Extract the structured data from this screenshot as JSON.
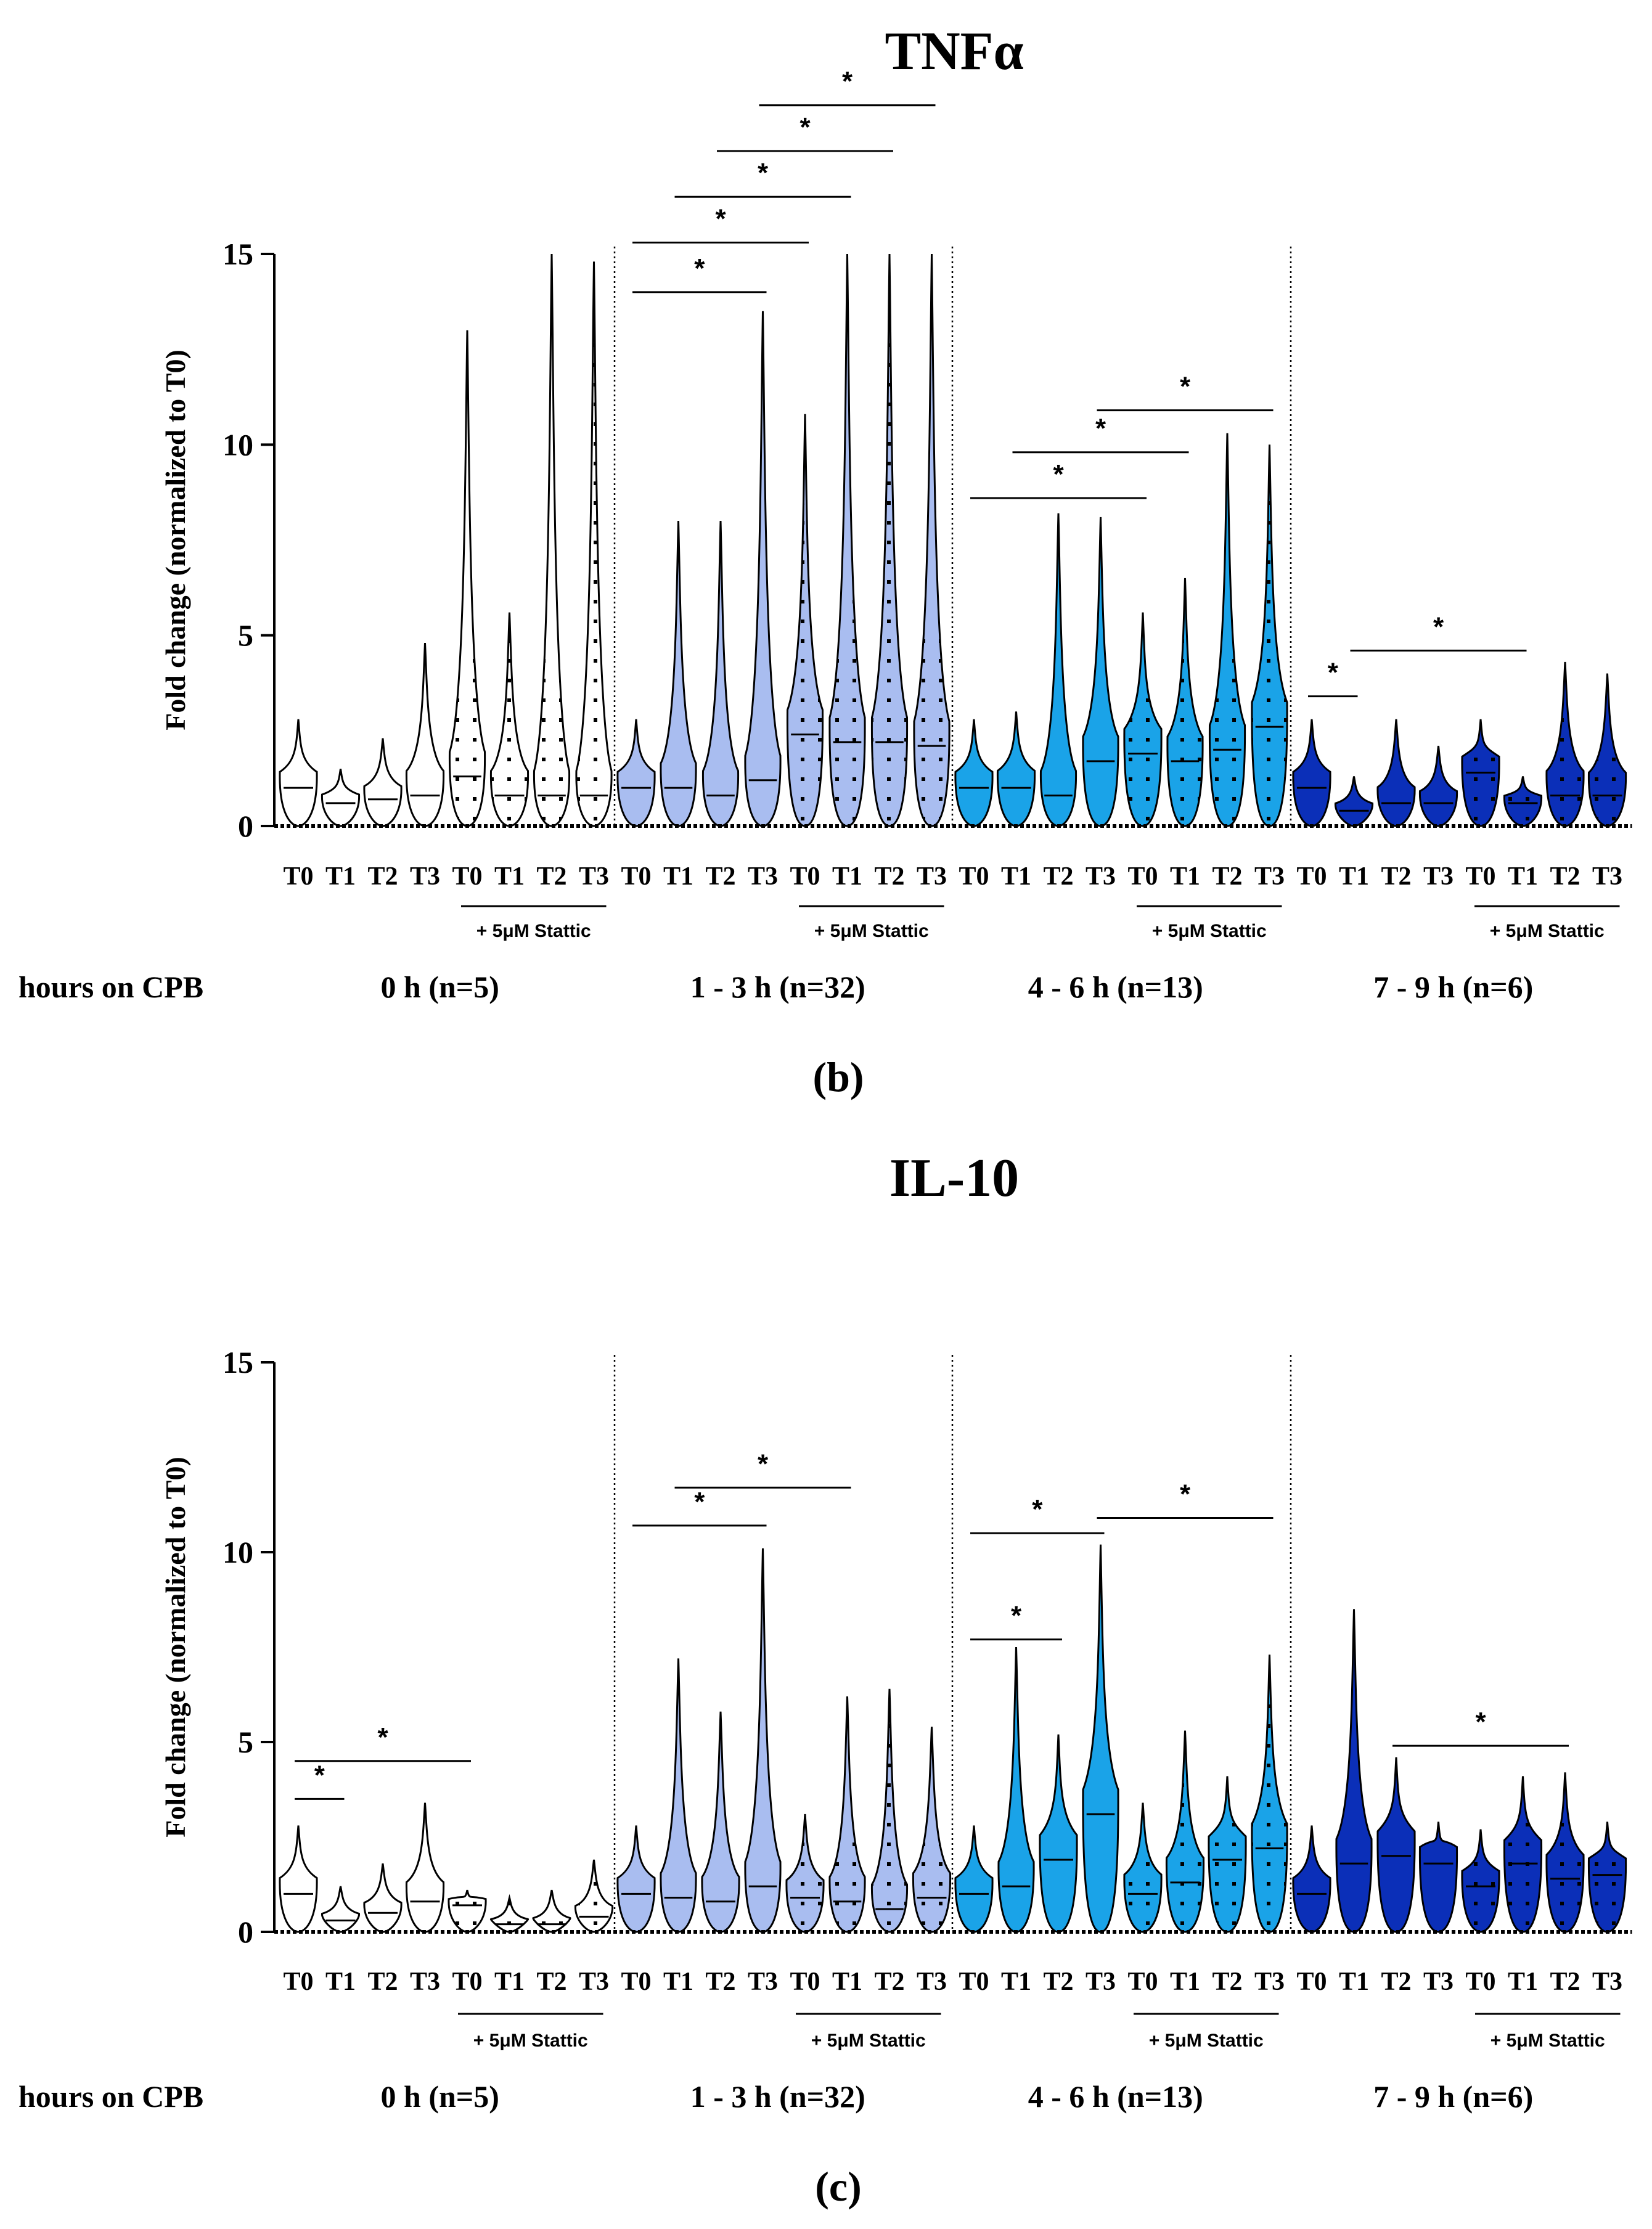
{
  "colors": {
    "group_0h": "#ffffff",
    "group_1_3h": "#a9bdf0",
    "group_4_6h": "#1aa3e8",
    "group_7_9h": "#0b2fb8",
    "stroke": "#000000"
  },
  "chart_data": [
    {
      "type": "violin",
      "title": "TNFα",
      "ylabel": "Fold change (normalized to T0)",
      "ylim": [
        0,
        15
      ],
      "yticks": [
        "0",
        "5",
        "10",
        "15"
      ],
      "row_label": "hours on CPB",
      "panel_label": "(b)",
      "stattic_label": "+ 5μM Stattic",
      "groups": [
        {
          "name": "0 h (n=5)",
          "color_key": "group_0h",
          "violins": [
            {
              "label": "T0",
              "median": 1.0,
              "max": 2.8,
              "dotted": false
            },
            {
              "label": "T1",
              "median": 0.6,
              "max": 1.5,
              "dotted": false
            },
            {
              "label": "T2",
              "median": 0.7,
              "max": 2.3,
              "dotted": false
            },
            {
              "label": "T3",
              "median": 0.8,
              "max": 4.8,
              "dotted": false
            },
            {
              "label": "T0",
              "median": 1.3,
              "max": 13.0,
              "dotted": true
            },
            {
              "label": "T1",
              "median": 0.8,
              "max": 5.6,
              "dotted": true
            },
            {
              "label": "T2",
              "median": 0.8,
              "max": 15.0,
              "dotted": true
            },
            {
              "label": "T3",
              "median": 0.8,
              "max": 14.8,
              "dotted": true
            }
          ]
        },
        {
          "name": "1 - 3 h (n=32)",
          "color_key": "group_1_3h",
          "violins": [
            {
              "label": "T0",
              "median": 1.0,
              "max": 2.8,
              "dotted": false
            },
            {
              "label": "T1",
              "median": 1.0,
              "max": 8.0,
              "dotted": false
            },
            {
              "label": "T2",
              "median": 0.8,
              "max": 8.0,
              "dotted": false
            },
            {
              "label": "T3",
              "median": 1.2,
              "max": 13.5,
              "dotted": false
            },
            {
              "label": "T0",
              "median": 2.4,
              "max": 10.8,
              "dotted": true
            },
            {
              "label": "T1",
              "median": 2.2,
              "max": 15.0,
              "dotted": true
            },
            {
              "label": "T2",
              "median": 2.2,
              "max": 15.0,
              "dotted": true
            },
            {
              "label": "T3",
              "median": 2.1,
              "max": 15.0,
              "dotted": true
            }
          ]
        },
        {
          "name": "4 - 6 h (n=13)",
          "color_key": "group_4_6h",
          "violins": [
            {
              "label": "T0",
              "median": 1.0,
              "max": 2.8,
              "dotted": false
            },
            {
              "label": "T1",
              "median": 1.0,
              "max": 3.0,
              "dotted": false
            },
            {
              "label": "T2",
              "median": 0.8,
              "max": 8.2,
              "dotted": false
            },
            {
              "label": "T3",
              "median": 1.7,
              "max": 8.1,
              "dotted": false
            },
            {
              "label": "T0",
              "median": 1.9,
              "max": 5.6,
              "dotted": true
            },
            {
              "label": "T1",
              "median": 1.7,
              "max": 6.5,
              "dotted": true
            },
            {
              "label": "T2",
              "median": 2.0,
              "max": 10.3,
              "dotted": true
            },
            {
              "label": "T3",
              "median": 2.6,
              "max": 10.0,
              "dotted": true
            }
          ]
        },
        {
          "name": "7 - 9 h (n=6)",
          "color_key": "group_7_9h",
          "violins": [
            {
              "label": "T0",
              "median": 1.0,
              "max": 2.8,
              "dotted": false
            },
            {
              "label": "T1",
              "median": 0.4,
              "max": 1.3,
              "dotted": false
            },
            {
              "label": "T2",
              "median": 0.6,
              "max": 2.8,
              "dotted": false
            },
            {
              "label": "T3",
              "median": 0.6,
              "max": 2.1,
              "dotted": false
            },
            {
              "label": "T0",
              "median": 1.4,
              "max": 2.8,
              "dotted": true
            },
            {
              "label": "T1",
              "median": 0.6,
              "max": 1.3,
              "dotted": true
            },
            {
              "label": "T2",
              "median": 0.8,
              "max": 4.3,
              "dotted": true
            },
            {
              "label": "T3",
              "median": 0.8,
              "max": 4.0,
              "dotted": true
            }
          ]
        }
      ],
      "significance": [
        {
          "from": 8,
          "to": 11,
          "y": 14.0,
          "label": "*"
        },
        {
          "from": 8,
          "to": 12,
          "y": 15.3,
          "label": "*"
        },
        {
          "from": 9,
          "to": 13,
          "y": 16.5,
          "label": "*"
        },
        {
          "from": 10,
          "to": 14,
          "y": 17.7,
          "label": "*"
        },
        {
          "from": 11,
          "to": 15,
          "y": 18.9,
          "label": "*"
        },
        {
          "from": 16,
          "to": 20,
          "y": 8.6,
          "label": "*"
        },
        {
          "from": 17,
          "to": 21,
          "y": 9.8,
          "label": "*"
        },
        {
          "from": 19,
          "to": 23,
          "y": 10.9,
          "label": "*"
        },
        {
          "from": 24,
          "to": 25,
          "y": 3.4,
          "label": "*"
        },
        {
          "from": 25,
          "to": 29,
          "y": 4.6,
          "label": "*"
        }
      ]
    },
    {
      "type": "violin",
      "title": "IL-10",
      "ylabel": "Fold change (normalized to T0)",
      "ylim": [
        0,
        15
      ],
      "yticks": [
        "0",
        "5",
        "10",
        "15"
      ],
      "row_label": "hours on CPB",
      "panel_label": "(c)",
      "stattic_label": "+ 5μM Stattic",
      "groups": [
        {
          "name": "0 h (n=5)",
          "color_key": "group_0h",
          "violins": [
            {
              "label": "T0",
              "median": 1.0,
              "max": 2.8,
              "dotted": false
            },
            {
              "label": "T1",
              "median": 0.3,
              "max": 1.2,
              "dotted": false
            },
            {
              "label": "T2",
              "median": 0.5,
              "max": 1.8,
              "dotted": false
            },
            {
              "label": "T3",
              "median": 0.8,
              "max": 3.4,
              "dotted": false
            },
            {
              "label": "T0",
              "median": 0.7,
              "max": 1.1,
              "dotted": true
            },
            {
              "label": "T1",
              "median": 0.2,
              "max": 0.9,
              "dotted": true
            },
            {
              "label": "T2",
              "median": 0.2,
              "max": 1.1,
              "dotted": true
            },
            {
              "label": "T3",
              "median": 0.4,
              "max": 1.9,
              "dotted": true
            }
          ]
        },
        {
          "name": "1 - 3 h (n=32)",
          "color_key": "group_1_3h",
          "violins": [
            {
              "label": "T0",
              "median": 1.0,
              "max": 2.8,
              "dotted": false
            },
            {
              "label": "T1",
              "median": 0.9,
              "max": 7.2,
              "dotted": false
            },
            {
              "label": "T2",
              "median": 0.8,
              "max": 5.8,
              "dotted": false
            },
            {
              "label": "T3",
              "median": 1.2,
              "max": 10.1,
              "dotted": false
            },
            {
              "label": "T0",
              "median": 0.9,
              "max": 3.1,
              "dotted": true
            },
            {
              "label": "T1",
              "median": 0.8,
              "max": 6.2,
              "dotted": true
            },
            {
              "label": "T2",
              "median": 0.6,
              "max": 6.4,
              "dotted": true
            },
            {
              "label": "T3",
              "median": 0.9,
              "max": 5.4,
              "dotted": true
            }
          ]
        },
        {
          "name": "4 - 6 h (n=13)",
          "color_key": "group_4_6h",
          "violins": [
            {
              "label": "T0",
              "median": 1.0,
              "max": 2.8,
              "dotted": false
            },
            {
              "label": "T1",
              "median": 1.2,
              "max": 7.5,
              "dotted": false
            },
            {
              "label": "T2",
              "median": 1.9,
              "max": 5.2,
              "dotted": false
            },
            {
              "label": "T3",
              "median": 3.1,
              "max": 10.2,
              "dotted": false
            },
            {
              "label": "T0",
              "median": 1.0,
              "max": 3.4,
              "dotted": true
            },
            {
              "label": "T1",
              "median": 1.3,
              "max": 5.3,
              "dotted": true
            },
            {
              "label": "T2",
              "median": 1.9,
              "max": 4.1,
              "dotted": true
            },
            {
              "label": "T3",
              "median": 2.2,
              "max": 7.3,
              "dotted": true
            }
          ]
        },
        {
          "name": "7 - 9 h (n=6)",
          "color_key": "group_7_9h",
          "violins": [
            {
              "label": "T0",
              "median": 1.0,
              "max": 2.8,
              "dotted": false
            },
            {
              "label": "T1",
              "median": 1.8,
              "max": 8.5,
              "dotted": false
            },
            {
              "label": "T2",
              "median": 2.0,
              "max": 4.6,
              "dotted": false
            },
            {
              "label": "T3",
              "median": 1.8,
              "max": 2.9,
              "dotted": false
            },
            {
              "label": "T0",
              "median": 1.2,
              "max": 2.7,
              "dotted": true
            },
            {
              "label": "T1",
              "median": 1.8,
              "max": 4.1,
              "dotted": true
            },
            {
              "label": "T2",
              "median": 1.4,
              "max": 4.2,
              "dotted": true
            },
            {
              "label": "T3",
              "median": 1.5,
              "max": 2.9,
              "dotted": true
            }
          ]
        }
      ],
      "significance": [
        {
          "from": 0,
          "to": 1,
          "y": 3.5,
          "label": "*"
        },
        {
          "from": 0,
          "to": 4,
          "y": 4.5,
          "label": "*"
        },
        {
          "from": 8,
          "to": 11,
          "y": 10.7,
          "label": "*"
        },
        {
          "from": 9,
          "to": 13,
          "y": 11.7,
          "label": "*"
        },
        {
          "from": 16,
          "to": 18,
          "y": 7.7,
          "label": "*"
        },
        {
          "from": 16,
          "to": 19,
          "y": 10.5,
          "label": "*"
        },
        {
          "from": 19,
          "to": 23,
          "y": 10.9,
          "label": "*"
        },
        {
          "from": 26,
          "to": 30,
          "y": 4.9,
          "label": "*"
        }
      ]
    }
  ]
}
